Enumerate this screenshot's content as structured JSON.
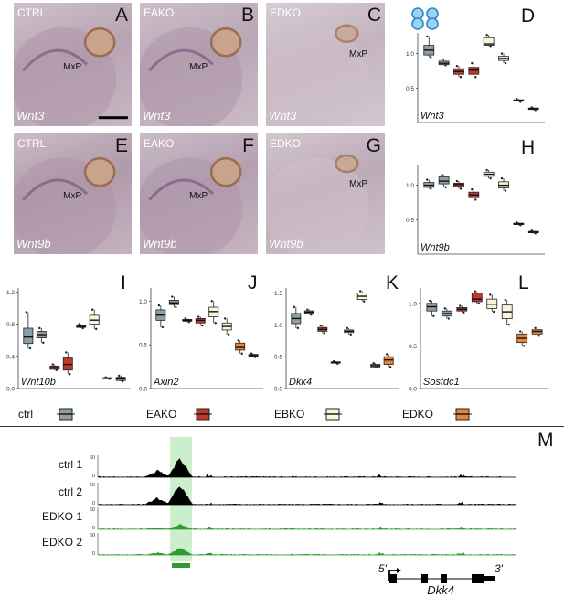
{
  "photos": [
    {
      "id": "A",
      "condition": "CTRL",
      "gene": "Wnt3",
      "mxp": "MxP",
      "scale_bar": true
    },
    {
      "id": "B",
      "condition": "EAKO",
      "gene": "Wnt3",
      "mxp": "MxP",
      "scale_bar": false
    },
    {
      "id": "C",
      "condition": "EDKO",
      "gene": "Wnt3",
      "mxp": "MxP",
      "scale_bar": false
    },
    {
      "id": "E",
      "condition": "CTRL",
      "gene": "Wnt9b",
      "mxp": "MxP",
      "scale_bar": false
    },
    {
      "id": "F",
      "condition": "EAKO",
      "gene": "Wnt9b",
      "mxp": "MxP",
      "scale_bar": false
    },
    {
      "id": "G",
      "condition": "EDKO",
      "gene": "Wnt9b",
      "mxp": "MxP",
      "scale_bar": false
    }
  ],
  "chart_data": [
    {
      "id": "D",
      "type": "box",
      "gene": "Wnt3",
      "ylim": [
        0,
        1.3
      ],
      "yticks": [
        "0.5",
        "1.0"
      ],
      "yticks_v": [
        0.5,
        1.0
      ],
      "boxes": [
        {
          "group": "ctrl",
          "q1": 0.98,
          "med": 1.05,
          "q3": 1.12,
          "lo": 0.95,
          "hi": 1.25
        },
        {
          "group": "ctrl",
          "q1": 0.84,
          "med": 0.86,
          "q3": 0.89,
          "lo": 0.83,
          "hi": 0.92
        },
        {
          "group": "EAKO",
          "q1": 0.7,
          "med": 0.74,
          "q3": 0.78,
          "lo": 0.66,
          "hi": 0.82
        },
        {
          "group": "EAKO",
          "q1": 0.7,
          "med": 0.76,
          "q3": 0.8,
          "lo": 0.66,
          "hi": 0.86
        },
        {
          "group": "EBKO",
          "q1": 1.12,
          "med": 1.14,
          "q3": 1.23,
          "lo": 1.11,
          "hi": 1.27
        },
        {
          "group": "EBKO",
          "q1": 0.9,
          "med": 0.93,
          "q3": 0.96,
          "lo": 0.86,
          "hi": 1.0
        },
        {
          "group": "EDKO",
          "q1": 0.31,
          "med": 0.32,
          "q3": 0.33,
          "lo": 0.3,
          "hi": 0.34
        },
        {
          "group": "EDKO",
          "q1": 0.19,
          "med": 0.2,
          "q3": 0.21,
          "lo": 0.18,
          "hi": 0.22
        }
      ]
    },
    {
      "id": "H",
      "type": "box",
      "gene": "Wnt9b",
      "ylim": [
        0,
        1.3
      ],
      "yticks": [
        "0.5",
        "1.0"
      ],
      "yticks_v": [
        0.5,
        1.0
      ],
      "boxes": [
        {
          "group": "ctrl",
          "q1": 0.97,
          "med": 1.0,
          "q3": 1.04,
          "lo": 0.95,
          "hi": 1.08
        },
        {
          "group": "ctrl",
          "q1": 1.02,
          "med": 1.06,
          "q3": 1.12,
          "lo": 0.97,
          "hi": 1.15
        },
        {
          "group": "EAKO",
          "q1": 0.98,
          "med": 1.01,
          "q3": 1.03,
          "lo": 0.95,
          "hi": 1.06
        },
        {
          "group": "EAKO",
          "q1": 0.82,
          "med": 0.86,
          "q3": 0.9,
          "lo": 0.79,
          "hi": 0.94
        },
        {
          "group": "EBKO",
          "q1": 1.13,
          "med": 1.16,
          "q3": 1.19,
          "lo": 1.1,
          "hi": 1.22
        },
        {
          "group": "EBKO",
          "q1": 0.96,
          "med": 1.0,
          "q3": 1.05,
          "lo": 0.92,
          "hi": 1.1
        },
        {
          "group": "EDKO",
          "q1": 0.43,
          "med": 0.44,
          "q3": 0.45,
          "lo": 0.42,
          "hi": 0.46
        },
        {
          "group": "EDKO",
          "q1": 0.31,
          "med": 0.32,
          "q3": 0.33,
          "lo": 0.3,
          "hi": 0.34
        }
      ]
    },
    {
      "id": "I",
      "type": "box",
      "gene": "Wnt10b",
      "ylim": [
        0,
        1.25
      ],
      "yticks": [
        "0.0",
        "0.4",
        "0.8",
        "1.2"
      ],
      "yticks_v": [
        0,
        0.4,
        0.8,
        1.2
      ],
      "boxes": [
        {
          "group": "ctrl",
          "q1": 0.56,
          "med": 0.64,
          "q3": 0.75,
          "lo": 0.5,
          "hi": 0.95
        },
        {
          "group": "ctrl",
          "q1": 0.63,
          "med": 0.67,
          "q3": 0.71,
          "lo": 0.57,
          "hi": 0.75
        },
        {
          "group": "EAKO",
          "q1": 0.24,
          "med": 0.26,
          "q3": 0.28,
          "lo": 0.23,
          "hi": 0.3
        },
        {
          "group": "EAKO",
          "q1": 0.23,
          "med": 0.3,
          "q3": 0.38,
          "lo": 0.18,
          "hi": 0.45
        },
        {
          "group": "EBKO",
          "q1": 0.76,
          "med": 0.77,
          "q3": 0.78,
          "lo": 0.75,
          "hi": 0.8
        },
        {
          "group": "EBKO",
          "q1": 0.8,
          "med": 0.85,
          "q3": 0.91,
          "lo": 0.74,
          "hi": 0.98
        },
        {
          "group": "EDKO",
          "q1": 0.125,
          "med": 0.13,
          "q3": 0.135,
          "lo": 0.12,
          "hi": 0.14
        },
        {
          "group": "EDKO",
          "q1": 0.1,
          "med": 0.12,
          "q3": 0.14,
          "lo": 0.09,
          "hi": 0.16
        }
      ]
    },
    {
      "id": "J",
      "type": "box",
      "gene": "Axin2",
      "ylim": [
        0,
        1.15
      ],
      "yticks": [
        "0.0",
        "0.5",
        "1.0"
      ],
      "yticks_v": [
        0,
        0.5,
        1.0
      ],
      "boxes": [
        {
          "group": "ctrl",
          "q1": 0.78,
          "med": 0.84,
          "q3": 0.9,
          "lo": 0.7,
          "hi": 0.95
        },
        {
          "group": "ctrl",
          "q1": 0.96,
          "med": 0.98,
          "q3": 1.01,
          "lo": 0.93,
          "hi": 1.05
        },
        {
          "group": "EAKO",
          "q1": 0.77,
          "med": 0.78,
          "q3": 0.79,
          "lo": 0.76,
          "hi": 0.8
        },
        {
          "group": "EAKO",
          "q1": 0.75,
          "med": 0.78,
          "q3": 0.8,
          "lo": 0.72,
          "hi": 0.82
        },
        {
          "group": "EBKO",
          "q1": 0.82,
          "med": 0.88,
          "q3": 0.93,
          "lo": 0.75,
          "hi": 1.0
        },
        {
          "group": "EBKO",
          "q1": 0.67,
          "med": 0.71,
          "q3": 0.75,
          "lo": 0.62,
          "hi": 0.8
        },
        {
          "group": "EDKO",
          "q1": 0.44,
          "med": 0.47,
          "q3": 0.52,
          "lo": 0.4,
          "hi": 0.55
        },
        {
          "group": "EDKO",
          "q1": 0.37,
          "med": 0.38,
          "q3": 0.39,
          "lo": 0.36,
          "hi": 0.4
        }
      ]
    },
    {
      "id": "K",
      "type": "box",
      "gene": "Dkk4",
      "ylim": [
        0,
        1.58
      ],
      "yticks": [
        "0.0",
        "0.5",
        "1.0",
        "1.5"
      ],
      "yticks_v": [
        0,
        0.5,
        1.0,
        1.5
      ],
      "boxes": [
        {
          "group": "ctrl",
          "q1": 1.02,
          "med": 1.1,
          "q3": 1.18,
          "lo": 0.95,
          "hi": 1.28
        },
        {
          "group": "ctrl",
          "q1": 1.18,
          "med": 1.2,
          "q3": 1.22,
          "lo": 1.16,
          "hi": 1.24
        },
        {
          "group": "EAKO",
          "q1": 0.9,
          "med": 0.93,
          "q3": 0.96,
          "lo": 0.87,
          "hi": 0.99
        },
        {
          "group": "EAKO",
          "q1": 0.4,
          "med": 0.41,
          "q3": 0.42,
          "lo": 0.39,
          "hi": 0.43
        },
        {
          "group": "EBKO",
          "q1": 0.88,
          "med": 0.9,
          "q3": 0.92,
          "lo": 0.85,
          "hi": 0.95
        },
        {
          "group": "EBKO",
          "q1": 1.4,
          "med": 1.45,
          "q3": 1.5,
          "lo": 1.37,
          "hi": 1.53
        },
        {
          "group": "EDKO",
          "q1": 0.34,
          "med": 0.36,
          "q3": 0.38,
          "lo": 0.33,
          "hi": 0.4
        },
        {
          "group": "EDKO",
          "q1": 0.38,
          "med": 0.45,
          "q3": 0.5,
          "lo": 0.34,
          "hi": 0.54
        }
      ]
    },
    {
      "id": "L",
      "type": "box",
      "gene": "Sostdc1",
      "ylim": [
        0,
        1.18
      ],
      "yticks": [
        "0.0",
        "0.5",
        "1.0"
      ],
      "yticks_v": [
        0,
        0.5,
        1.0
      ],
      "boxes": [
        {
          "group": "ctrl",
          "q1": 0.91,
          "med": 0.96,
          "q3": 1.0,
          "lo": 0.85,
          "hi": 1.03
        },
        {
          "group": "ctrl",
          "q1": 0.85,
          "med": 0.88,
          "q3": 0.91,
          "lo": 0.82,
          "hi": 0.94
        },
        {
          "group": "EAKO",
          "q1": 0.91,
          "med": 0.93,
          "q3": 0.95,
          "lo": 0.89,
          "hi": 0.97
        },
        {
          "group": "EAKO",
          "q1": 1.02,
          "med": 1.05,
          "q3": 1.12,
          "lo": 1.0,
          "hi": 1.14
        },
        {
          "group": "EBKO",
          "q1": 0.94,
          "med": 0.99,
          "q3": 1.05,
          "lo": 0.9,
          "hi": 1.1
        },
        {
          "group": "EBKO",
          "q1": 0.82,
          "med": 0.9,
          "q3": 0.98,
          "lo": 0.75,
          "hi": 1.04
        },
        {
          "group": "EDKO",
          "q1": 0.54,
          "med": 0.59,
          "q3": 0.64,
          "lo": 0.5,
          "hi": 0.67
        },
        {
          "group": "EDKO",
          "q1": 0.64,
          "med": 0.67,
          "q3": 0.69,
          "lo": 0.62,
          "hi": 0.71
        }
      ]
    }
  ],
  "colors": {
    "ctrl": "#8d9ea8",
    "EAKO": "#c0392b",
    "EBKO": "#faf6dc",
    "EDKO": "#e3863c",
    "track_ctrl": "#000000",
    "track_edko": "#2e9b2e",
    "highlight": "#cdeecd"
  },
  "legend": [
    {
      "label": "ctrl",
      "group": "ctrl"
    },
    {
      "label": "EAKO",
      "group": "EAKO"
    },
    {
      "label": "EBKO",
      "group": "EBKO"
    },
    {
      "label": "EDKO",
      "group": "EDKO"
    }
  ],
  "tracks": [
    {
      "label": "ctrl 1",
      "axis_top": "60",
      "axis_bottom": "0",
      "group": "ctrl",
      "peak": 0.95
    },
    {
      "label": "ctrl 2",
      "axis_top": "60",
      "axis_bottom": "0",
      "group": "ctrl",
      "peak": 1.0
    },
    {
      "label": "EDKO 1",
      "axis_top": "60",
      "axis_bottom": "0",
      "group": "EDKO",
      "peak": 0.25
    },
    {
      "label": "EDKO 2",
      "axis_top": "60",
      "axis_bottom": "0",
      "group": "EDKO",
      "peak": 0.35
    }
  ],
  "gene_model": {
    "name": "Dkk4",
    "five_prime": "5'",
    "three_prime": "3'"
  },
  "panel_M_label": "M"
}
